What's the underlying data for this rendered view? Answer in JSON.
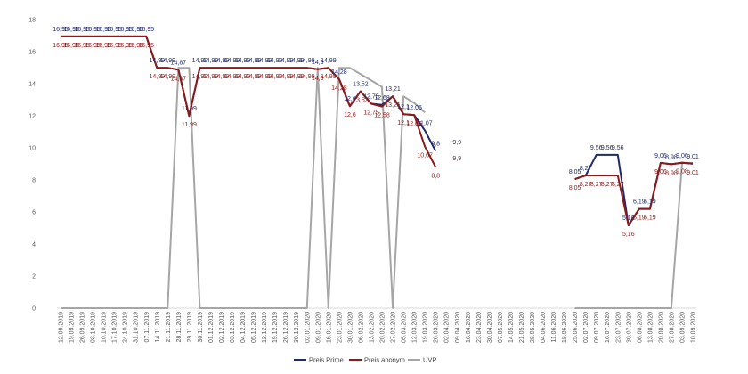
{
  "chart_data": {
    "type": "line",
    "title": "",
    "xlabel": "",
    "ylabel": "",
    "ylim": [
      0,
      18
    ],
    "yticks": [
      "0",
      "2",
      "4",
      "6",
      "8",
      "10",
      "12",
      "14",
      "16",
      "18"
    ],
    "grid": false,
    "legend_position": "bottom-center",
    "categories": [
      "12.09.2019",
      "19.09.2019",
      "26.09.2019",
      "03.10.2019",
      "10.10.2019",
      "17.10.2019",
      "24.10.2019",
      "31.10.2019",
      "07.11.2019",
      "14.11.2019",
      "21.11.2019",
      "28.11.2019",
      "29.11.2019",
      "30.11.2019",
      "01.12.2019",
      "02.12.2019",
      "03.12.2019",
      "04.12.2019",
      "05.12.2019",
      "12.12.2019",
      "19.12.2019",
      "26.12.2019",
      "30.12.2019",
      "02.01.2020",
      "09.01.2020",
      "16.01.2020",
      "23.01.2020",
      "30.01.2020",
      "06.02.2020",
      "13.02.2020",
      "20.02.2020",
      "27.02.2020",
      "05.03.2020",
      "12.03.2020",
      "19.03.2020",
      "26.03.2020",
      "02.04.2020",
      "09.04.2020",
      "16.04.2020",
      "23.04.2020",
      "30.04.2020",
      "07.05.2020",
      "14.05.2020",
      "21.05.2020",
      "28.05.2020",
      "04.06.2020",
      "11.06.2020",
      "18.06.2020",
      "25.06.2020",
      "02.07.2020",
      "09.07.2020",
      "16.07.2020",
      "23.07.2020",
      "30.07.2020",
      "06.08.2020",
      "13.08.2020",
      "20.08.2020",
      "27.08.2020",
      "03.09.2020",
      "10.09.2020"
    ],
    "series": [
      {
        "name": "Preis Prime",
        "color": "#1f2a6b",
        "values": [
          16.95,
          16.95,
          16.95,
          16.95,
          16.95,
          16.95,
          16.95,
          16.95,
          16.95,
          14.99,
          14.99,
          14.87,
          11.99,
          14.99,
          14.99,
          14.99,
          14.99,
          14.99,
          14.99,
          14.99,
          14.99,
          14.99,
          14.99,
          14.99,
          14.9,
          14.99,
          14.28,
          12.6,
          13.52,
          12.75,
          12.68,
          13.21,
          12.1,
          12.05,
          11.07,
          9.8,
          null,
          9.9,
          null,
          null,
          null,
          null,
          null,
          null,
          null,
          null,
          null,
          null,
          8.05,
          8.27,
          9.56,
          9.56,
          9.56,
          5.16,
          6.19,
          6.19,
          9.06,
          8.98,
          9.06,
          9.01
        ]
      },
      {
        "name": "Preis anonym",
        "color": "#8b1a1a",
        "values": [
          16.95,
          16.95,
          16.95,
          16.95,
          16.95,
          16.95,
          16.95,
          16.95,
          16.95,
          14.99,
          14.99,
          14.87,
          11.99,
          14.99,
          14.99,
          14.99,
          14.99,
          14.99,
          14.99,
          14.99,
          14.99,
          14.99,
          14.99,
          14.99,
          14.9,
          14.99,
          14.28,
          12.6,
          13.52,
          12.75,
          12.58,
          13.21,
          12.1,
          12.05,
          10.07,
          8.8,
          null,
          9.9,
          null,
          null,
          null,
          null,
          null,
          null,
          null,
          null,
          null,
          null,
          8.05,
          8.27,
          8.27,
          8.27,
          8.27,
          5.16,
          6.19,
          6.19,
          9.06,
          8.98,
          9.08,
          9.01
        ]
      },
      {
        "name": "UVP",
        "color": "#a6a6a6",
        "values": [
          0,
          0,
          0,
          0,
          0,
          0,
          0,
          0,
          0,
          0,
          0,
          14.99,
          14.99,
          0,
          0,
          0,
          0,
          0,
          0,
          0,
          0,
          0,
          0,
          0,
          14.99,
          0,
          14.99,
          14.99,
          14.6,
          14.2,
          13.8,
          0,
          13.21,
          12.8,
          12.2,
          null,
          null,
          null,
          null,
          null,
          null,
          null,
          null,
          null,
          null,
          null,
          null,
          null,
          0,
          0,
          0,
          0,
          0,
          0,
          0,
          0,
          0,
          0,
          9.06,
          9.06
        ]
      }
    ],
    "data_labels": [
      {
        "series": "Preis Prime",
        "x": 0,
        "text": "16,95"
      },
      {
        "series": "Preis Prime",
        "x": 1,
        "text": "16,95"
      },
      {
        "series": "Preis Prime",
        "x": 2,
        "text": "16,95"
      },
      {
        "series": "Preis Prime",
        "x": 3,
        "text": "16,95"
      },
      {
        "series": "Preis Prime",
        "x": 4,
        "text": "16,95"
      },
      {
        "series": "Preis Prime",
        "x": 5,
        "text": "16,95"
      },
      {
        "series": "Preis Prime",
        "x": 6,
        "text": "16,95"
      },
      {
        "series": "Preis Prime",
        "x": 7,
        "text": "16,95"
      },
      {
        "series": "Preis Prime",
        "x": 8,
        "text": "16,95"
      },
      {
        "series": "Preis Prime",
        "x": 9,
        "text": "14,99"
      },
      {
        "series": "Preis Prime",
        "x": 10,
        "text": "14,99"
      },
      {
        "series": "Preis Prime",
        "x": 11,
        "text": "14,87"
      },
      {
        "series": "Preis Prime",
        "x": 12,
        "text": "11,99"
      },
      {
        "series": "Preis Prime",
        "x": 13,
        "text": "14,99"
      },
      {
        "series": "Preis Prime",
        "x": 14,
        "text": "14,99"
      },
      {
        "series": "Preis Prime",
        "x": 15,
        "text": "14,99"
      },
      {
        "series": "Preis Prime",
        "x": 16,
        "text": "14,99"
      },
      {
        "series": "Preis Prime",
        "x": 17,
        "text": "14,99"
      },
      {
        "series": "Preis Prime",
        "x": 18,
        "text": "14,99"
      },
      {
        "series": "Preis Prime",
        "x": 19,
        "text": "14,99"
      },
      {
        "series": "Preis Prime",
        "x": 20,
        "text": "14,99"
      },
      {
        "series": "Preis Prime",
        "x": 21,
        "text": "14,99"
      },
      {
        "series": "Preis Prime",
        "x": 22,
        "text": "14,99"
      },
      {
        "series": "Preis Prime",
        "x": 23,
        "text": "14,99"
      },
      {
        "series": "Preis Prime",
        "x": 24,
        "text": "14,9"
      },
      {
        "series": "Preis Prime",
        "x": 25,
        "text": "14,99"
      },
      {
        "series": "Preis Prime",
        "x": 26,
        "text": "14,28"
      },
      {
        "series": "Preis Prime",
        "x": 27,
        "text": "12,6"
      },
      {
        "series": "Preis Prime",
        "x": 28,
        "text": "13,52"
      },
      {
        "series": "Preis Prime",
        "x": 29,
        "text": "12,75"
      },
      {
        "series": "Preis Prime",
        "x": 30,
        "text": "12,68"
      },
      {
        "series": "Preis Prime",
        "x": 31,
        "text": "13,21"
      },
      {
        "series": "Preis Prime",
        "x": 32,
        "text": "12,1"
      },
      {
        "series": "Preis Prime",
        "x": 33,
        "text": "12,05"
      },
      {
        "series": "Preis Prime",
        "x": 34,
        "text": "11,07"
      },
      {
        "series": "Preis Prime",
        "x": 35,
        "text": "9,8"
      },
      {
        "series": "Preis Prime",
        "x": 37,
        "text": "9,9"
      },
      {
        "series": "Preis Prime",
        "x": 48,
        "text": "8,05"
      },
      {
        "series": "Preis Prime",
        "x": 49,
        "text": "8,27"
      },
      {
        "series": "Preis Prime",
        "x": 50,
        "text": "9,56"
      },
      {
        "series": "Preis Prime",
        "x": 51,
        "text": "9,56"
      },
      {
        "series": "Preis Prime",
        "x": 52,
        "text": "9,56"
      },
      {
        "series": "Preis Prime",
        "x": 53,
        "text": "5,16"
      },
      {
        "series": "Preis Prime",
        "x": 54,
        "text": "6,19"
      },
      {
        "series": "Preis Prime",
        "x": 55,
        "text": "6,19"
      },
      {
        "series": "Preis Prime",
        "x": 56,
        "text": "9,06"
      },
      {
        "series": "Preis Prime",
        "x": 57,
        "text": "8,98"
      },
      {
        "series": "Preis Prime",
        "x": 58,
        "text": "9,06"
      },
      {
        "series": "Preis Prime",
        "x": 59,
        "text": "9,01"
      },
      {
        "series": "Preis anonym",
        "x": 0,
        "text": "16,95"
      },
      {
        "series": "Preis anonym",
        "x": 1,
        "text": "16,95"
      },
      {
        "series": "Preis anonym",
        "x": 2,
        "text": "16,95"
      },
      {
        "series": "Preis anonym",
        "x": 3,
        "text": "16,95"
      },
      {
        "series": "Preis anonym",
        "x": 4,
        "text": "16,95"
      },
      {
        "series": "Preis anonym",
        "x": 5,
        "text": "16,95"
      },
      {
        "series": "Preis anonym",
        "x": 6,
        "text": "16,95"
      },
      {
        "series": "Preis anonym",
        "x": 7,
        "text": "16,95"
      },
      {
        "series": "Preis anonym",
        "x": 8,
        "text": "16,95"
      },
      {
        "series": "Preis anonym",
        "x": 9,
        "text": "14,99"
      },
      {
        "series": "Preis anonym",
        "x": 10,
        "text": "14,99"
      },
      {
        "series": "Preis anonym",
        "x": 11,
        "text": "14,87"
      },
      {
        "series": "Preis anonym",
        "x": 12,
        "text": "11,99"
      },
      {
        "series": "Preis anonym",
        "x": 13,
        "text": "14,99"
      },
      {
        "series": "Preis anonym",
        "x": 14,
        "text": "14,99"
      },
      {
        "series": "Preis anonym",
        "x": 15,
        "text": "14,99"
      },
      {
        "series": "Preis anonym",
        "x": 16,
        "text": "14,99"
      },
      {
        "series": "Preis anonym",
        "x": 17,
        "text": "14,99"
      },
      {
        "series": "Preis anonym",
        "x": 18,
        "text": "14,99"
      },
      {
        "series": "Preis anonym",
        "x": 19,
        "text": "14,99"
      },
      {
        "series": "Preis anonym",
        "x": 20,
        "text": "14,99"
      },
      {
        "series": "Preis anonym",
        "x": 21,
        "text": "14,99"
      },
      {
        "series": "Preis anonym",
        "x": 22,
        "text": "14,99"
      },
      {
        "series": "Preis anonym",
        "x": 23,
        "text": "14,99"
      },
      {
        "series": "Preis anonym",
        "x": 24,
        "text": "14,9"
      },
      {
        "series": "Preis anonym",
        "x": 25,
        "text": "14,99"
      },
      {
        "series": "Preis anonym",
        "x": 26,
        "text": "14,28"
      },
      {
        "series": "Preis anonym",
        "x": 27,
        "text": "12,6"
      },
      {
        "series": "Preis anonym",
        "x": 28,
        "text": "13,52"
      },
      {
        "series": "Preis anonym",
        "x": 29,
        "text": "12,75"
      },
      {
        "series": "Preis anonym",
        "x": 30,
        "text": "12,58"
      },
      {
        "series": "Preis anonym",
        "x": 31,
        "text": "13,21"
      },
      {
        "series": "Preis anonym",
        "x": 32,
        "text": "12,1"
      },
      {
        "series": "Preis anonym",
        "x": 33,
        "text": "12,05"
      },
      {
        "series": "Preis anonym",
        "x": 34,
        "text": "10,07"
      },
      {
        "series": "Preis anonym",
        "x": 35,
        "text": "8,8"
      },
      {
        "series": "Preis anonym",
        "x": 37,
        "text": "9,9"
      },
      {
        "series": "Preis anonym",
        "x": 48,
        "text": "8,05"
      },
      {
        "series": "Preis anonym",
        "x": 49,
        "text": "8,27"
      },
      {
        "series": "Preis anonym",
        "x": 50,
        "text": "8,27"
      },
      {
        "series": "Preis anonym",
        "x": 51,
        "text": "8,27"
      },
      {
        "series": "Preis anonym",
        "x": 52,
        "text": "8,27"
      },
      {
        "series": "Preis anonym",
        "x": 53,
        "text": "5,16"
      },
      {
        "series": "Preis anonym",
        "x": 54,
        "text": "6,19"
      },
      {
        "series": "Preis anonym",
        "x": 55,
        "text": "6,19"
      },
      {
        "series": "Preis anonym",
        "x": 56,
        "text": "9,06"
      },
      {
        "series": "Preis anonym",
        "x": 57,
        "text": "8,98"
      },
      {
        "series": "Preis anonym",
        "x": 58,
        "text": "9,08"
      },
      {
        "series": "Preis anonym",
        "x": 59,
        "text": "9,01"
      }
    ]
  }
}
